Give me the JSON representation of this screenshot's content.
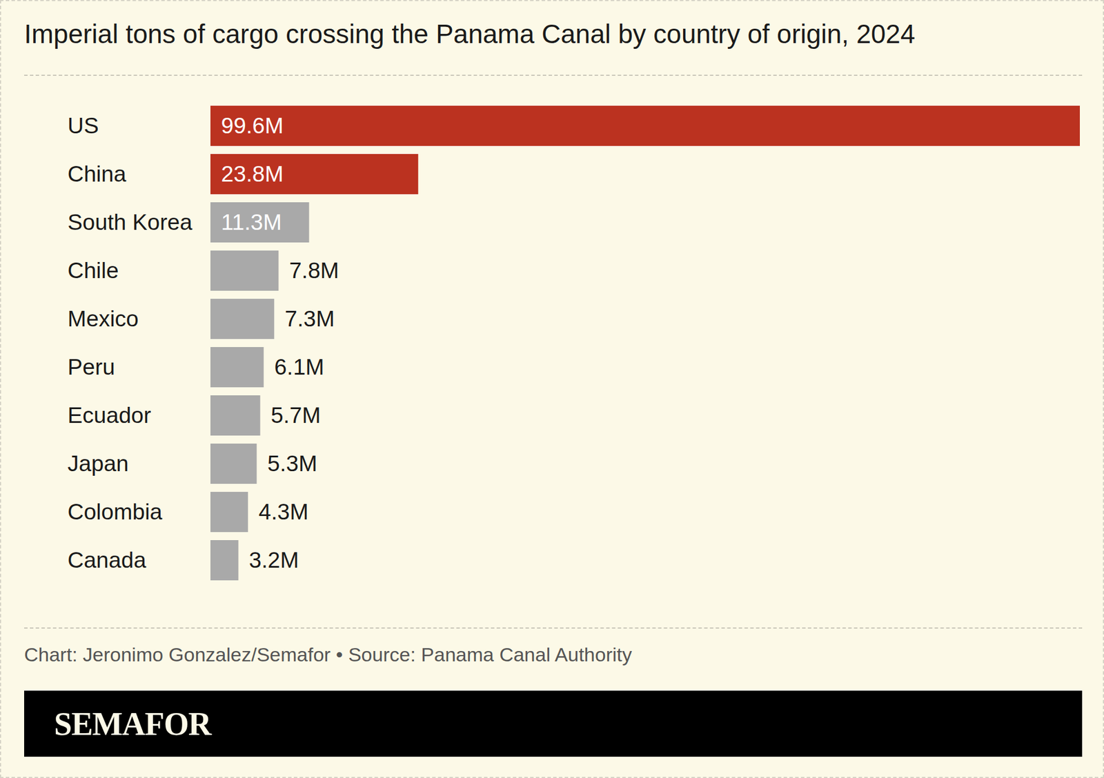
{
  "chart_data": {
    "type": "bar",
    "orientation": "horizontal",
    "title": "Imperial tons of cargo crossing the Panama Canal by country of origin, 2024",
    "caption": "Chart: Jeronimo Gonzalez/Semafor • Source: Panama Canal Authority",
    "brand": "SEMAFOR",
    "categories": [
      "US",
      "China",
      "South Korea",
      "Chile",
      "Mexico",
      "Peru",
      "Ecuador",
      "Japan",
      "Colombia",
      "Canada"
    ],
    "values": [
      99600000,
      23800000,
      11300000,
      7800000,
      7300000,
      6100000,
      5700000,
      5300000,
      4300000,
      3200000
    ],
    "value_labels": [
      "99.6M",
      "23.8M",
      "11.3M",
      "7.8M",
      "7.3M",
      "6.1M",
      "5.7M",
      "5.3M",
      "4.3M",
      "3.2M"
    ],
    "colors": [
      "#bb3220",
      "#bb3220",
      "#a9a9a9",
      "#a9a9a9",
      "#a9a9a9",
      "#a9a9a9",
      "#a9a9a9",
      "#a9a9a9",
      "#a9a9a9",
      "#a9a9a9"
    ],
    "xlim": [
      0,
      99600000
    ],
    "data_labels": true,
    "tick_labels": "y"
  }
}
